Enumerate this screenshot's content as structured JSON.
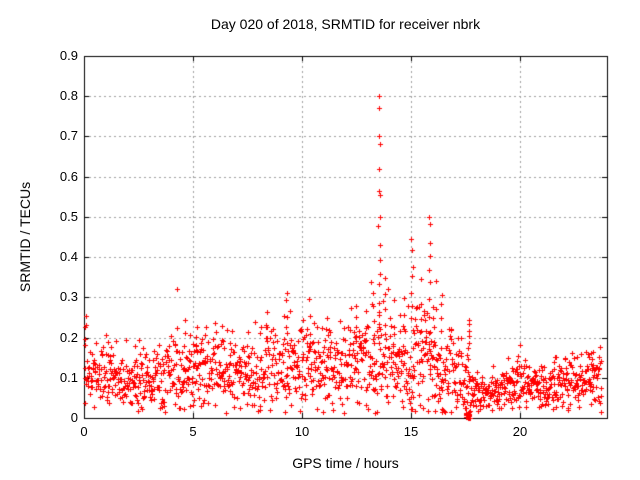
{
  "window": {
    "background": "#ffffff",
    "text_color": "#000000"
  },
  "chart_data": {
    "type": "scatter",
    "title": "Day 020 of 2018, SRMTID for receiver nbrk",
    "xlabel": "GPS time / hours",
    "ylabel": "SRMTID / TECUs",
    "xlim": [
      0,
      24
    ],
    "ylim": [
      0,
      0.9
    ],
    "xticks": [
      {
        "v": 0,
        "label": "0"
      },
      {
        "v": 5,
        "label": "5"
      },
      {
        "v": 10,
        "label": "10"
      },
      {
        "v": 15,
        "label": "15"
      },
      {
        "v": 20,
        "label": "20"
      }
    ],
    "yticks": [
      {
        "v": 0,
        "label": "0"
      },
      {
        "v": 0.1,
        "label": "0.1"
      },
      {
        "v": 0.2,
        "label": "0.2"
      },
      {
        "v": 0.3,
        "label": "0.3"
      },
      {
        "v": 0.4,
        "label": "0.4"
      },
      {
        "v": 0.5,
        "label": "0.5"
      },
      {
        "v": 0.6,
        "label": "0.6"
      },
      {
        "v": 0.7,
        "label": "0.7"
      },
      {
        "v": 0.8,
        "label": "0.8"
      },
      {
        "v": 0.9,
        "label": "0.9"
      }
    ],
    "grid": true,
    "grid_color": "#a0a0a0",
    "axis_color": "#000000",
    "legend": "none",
    "marker": {
      "shape": "plus",
      "color": "#ff0000",
      "size": 5
    },
    "series_name": "SRMTID",
    "notable_points": [
      [
        0.07,
        0.23
      ],
      [
        4.25,
        0.32
      ],
      [
        9.3,
        0.31
      ],
      [
        10.35,
        0.3
      ],
      [
        12.45,
        0.3
      ],
      [
        13.54,
        0.8
      ],
      [
        13.56,
        0.77
      ],
      [
        13.55,
        0.7
      ],
      [
        13.57,
        0.68
      ],
      [
        13.56,
        0.62
      ],
      [
        13.54,
        0.565
      ],
      [
        13.58,
        0.555
      ],
      [
        15.06,
        0.45
      ],
      [
        15.85,
        0.5
      ],
      [
        16.4,
        0.32
      ],
      [
        17.65,
        0.25
      ],
      [
        23.3,
        0.17
      ]
    ],
    "generator": {
      "seed": 20180120,
      "n_base": 1500,
      "x_start": 0.03,
      "x_end": 23.75,
      "envelope": [
        [
          0.0,
          0.115,
          0.045
        ],
        [
          0.5,
          0.105,
          0.04
        ],
        [
          1.5,
          0.09,
          0.035
        ],
        [
          2.5,
          0.095,
          0.035
        ],
        [
          3.5,
          0.1,
          0.04
        ],
        [
          4.5,
          0.115,
          0.05
        ],
        [
          5.5,
          0.115,
          0.045
        ],
        [
          6.5,
          0.11,
          0.04
        ],
        [
          7.5,
          0.115,
          0.045
        ],
        [
          8.5,
          0.12,
          0.05
        ],
        [
          9.5,
          0.125,
          0.05
        ],
        [
          10.5,
          0.12,
          0.05
        ],
        [
          11.5,
          0.12,
          0.05
        ],
        [
          12.5,
          0.13,
          0.055
        ],
        [
          13.5,
          0.15,
          0.065
        ],
        [
          14.5,
          0.13,
          0.055
        ],
        [
          15.3,
          0.15,
          0.07
        ],
        [
          16.0,
          0.14,
          0.065
        ],
        [
          16.8,
          0.11,
          0.05
        ],
        [
          17.5,
          0.075,
          0.04
        ],
        [
          18.2,
          0.06,
          0.025
        ],
        [
          19.0,
          0.07,
          0.03
        ],
        [
          19.8,
          0.085,
          0.035
        ],
        [
          20.6,
          0.075,
          0.03
        ],
        [
          21.4,
          0.075,
          0.03
        ],
        [
          22.2,
          0.08,
          0.035
        ],
        [
          23.0,
          0.085,
          0.035
        ],
        [
          23.8,
          0.09,
          0.04
        ]
      ],
      "spikes": [
        [
          0.07,
          0.23,
          3
        ],
        [
          1.15,
          0.2,
          2
        ],
        [
          2.3,
          0.185,
          2
        ],
        [
          4.25,
          0.32,
          1
        ],
        [
          4.6,
          0.25,
          3
        ],
        [
          5.15,
          0.24,
          3
        ],
        [
          6.3,
          0.24,
          2
        ],
        [
          7.5,
          0.22,
          2
        ],
        [
          8.35,
          0.27,
          3
        ],
        [
          9.3,
          0.31,
          4
        ],
        [
          10.35,
          0.3,
          4
        ],
        [
          11.2,
          0.26,
          3
        ],
        [
          12.45,
          0.3,
          4
        ],
        [
          12.9,
          0.28,
          3
        ],
        [
          13.3,
          0.33,
          5
        ],
        [
          13.55,
          0.52,
          10
        ],
        [
          13.8,
          0.36,
          5
        ],
        [
          14.2,
          0.3,
          3
        ],
        [
          14.65,
          0.31,
          4
        ],
        [
          15.05,
          0.45,
          9
        ],
        [
          15.5,
          0.36,
          4
        ],
        [
          15.85,
          0.49,
          9
        ],
        [
          16.1,
          0.34,
          4
        ],
        [
          16.4,
          0.32,
          5
        ],
        [
          17.65,
          0.25,
          6
        ],
        [
          19.9,
          0.16,
          3
        ],
        [
          21.6,
          0.16,
          3
        ],
        [
          23.3,
          0.17,
          3
        ],
        [
          23.7,
          0.15,
          2
        ]
      ],
      "outliers": [
        [
          13.54,
          0.8
        ],
        [
          13.56,
          0.77
        ],
        [
          13.55,
          0.7
        ],
        [
          13.57,
          0.68
        ],
        [
          13.56,
          0.62
        ],
        [
          13.54,
          0.565
        ],
        [
          13.58,
          0.555
        ],
        [
          15.85,
          0.5
        ],
        [
          0.07,
          0.23
        ],
        [
          4.25,
          0.32
        ],
        [
          9.3,
          0.31
        ]
      ],
      "zero_cluster": {
        "x0": 17.52,
        "x1": 17.7,
        "n": 24,
        "ymax": 0.012
      }
    }
  }
}
